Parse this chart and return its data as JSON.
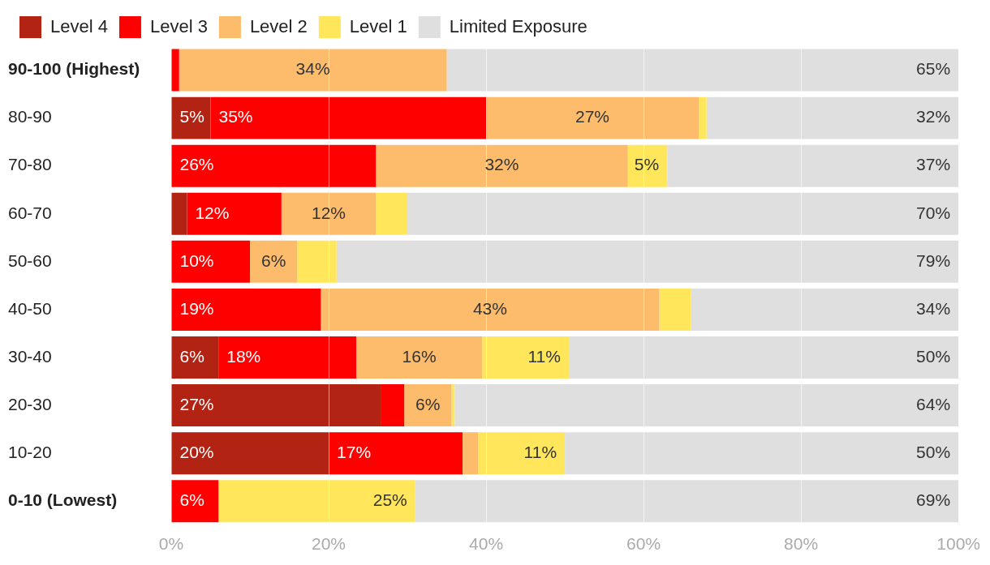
{
  "chart_data": {
    "type": "bar",
    "orientation": "horizontal",
    "stacked": true,
    "categories": [
      "90-100 (Highest)",
      "80-90",
      "70-80",
      "60-70",
      "50-60",
      "40-50",
      "30-40",
      "20-30",
      "10-20",
      "0-10 (Lowest)"
    ],
    "series": [
      {
        "name": "Level 4",
        "color": "#b22314",
        "values": [
          null,
          5,
          null,
          2,
          null,
          null,
          6,
          26.6,
          20,
          null
        ],
        "value_labels": [
          null,
          "5%",
          null,
          null,
          null,
          null,
          "6%",
          "27%",
          "20%",
          null
        ]
      },
      {
        "name": "Level 3",
        "color": "#ff0000",
        "values": [
          1,
          35,
          26,
          12,
          10,
          19,
          17.5,
          3,
          17,
          6
        ],
        "value_labels": [
          null,
          "35%",
          "26%",
          "12%",
          "10%",
          "19%",
          "18%",
          null,
          "17%",
          "6%"
        ]
      },
      {
        "name": "Level 2",
        "color": "#fdbb6c",
        "values": [
          34,
          27,
          32,
          12,
          6,
          43,
          16,
          6,
          2,
          null
        ],
        "value_labels": [
          "34%",
          "27%",
          "32%",
          "12%",
          "6%",
          "43%",
          "16%",
          "6%",
          null,
          null
        ]
      },
      {
        "name": "Level 1",
        "color": "#ffe65a",
        "values": [
          null,
          1,
          5,
          4,
          5,
          4,
          11,
          0.4,
          11,
          25
        ],
        "value_labels": [
          null,
          null,
          "5%",
          null,
          null,
          null,
          "11%",
          null,
          "11%",
          "25%"
        ]
      },
      {
        "name": "Limited Exposure",
        "color": "#dfdfdf",
        "values": [
          65,
          32,
          37,
          70,
          79,
          34,
          49.5,
          64,
          50,
          69
        ],
        "value_labels": [
          "65%",
          "32%",
          "37%",
          "70%",
          "79%",
          "34%",
          "50%",
          "64%",
          "50%",
          "69%"
        ]
      }
    ],
    "xlim": [
      0,
      100
    ],
    "xticks": [
      {
        "value": 0,
        "label": "0%"
      },
      {
        "value": 20,
        "label": "20%"
      },
      {
        "value": 40,
        "label": "40%"
      },
      {
        "value": 60,
        "label": "60%"
      },
      {
        "value": 80,
        "label": "80%"
      },
      {
        "value": 100,
        "label": "100%"
      }
    ],
    "grid": "x",
    "legend": "top left"
  }
}
